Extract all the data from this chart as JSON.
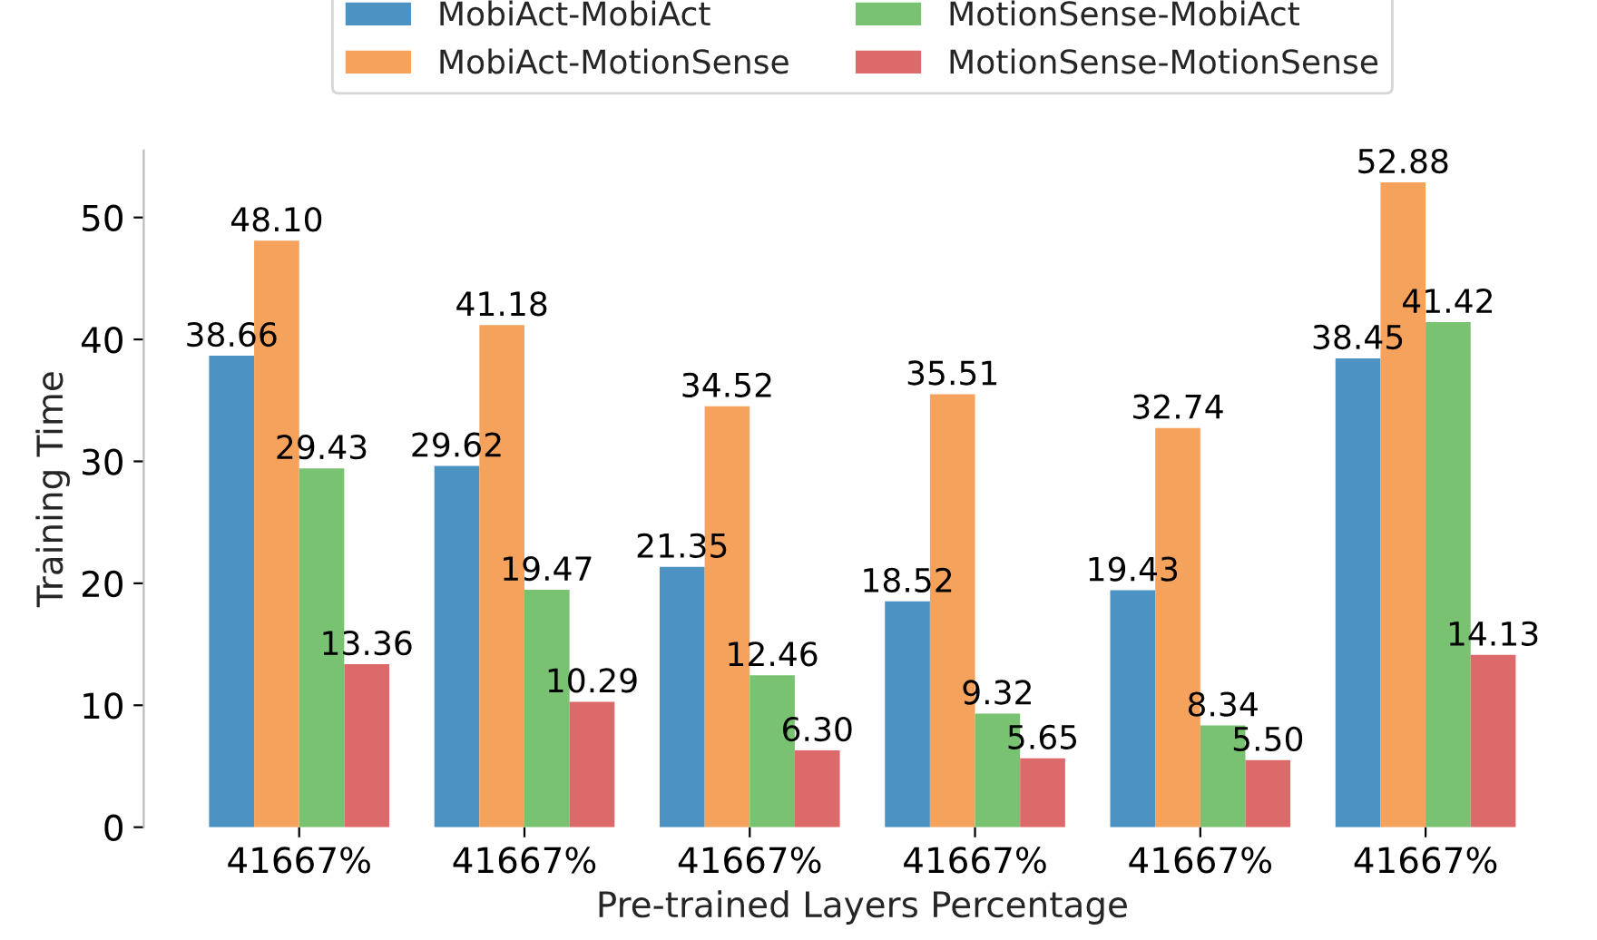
{
  "chart_data": {
    "type": "bar",
    "xlabel": "Pre-trained Layers Percentage",
    "ylabel": "Training Time",
    "categories": [
      "41667%",
      "41667%",
      "41667%",
      "41667%",
      "41667%",
      "41667%"
    ],
    "series": [
      {
        "name": "MobiAct-MobiAct",
        "color": "#4c93c3",
        "values": [
          38.66,
          29.62,
          21.35,
          18.52,
          19.43,
          38.45
        ],
        "value_labels": [
          "38.66",
          "29.62",
          "21.35",
          "18.52",
          "19.43",
          "38.45"
        ]
      },
      {
        "name": "MobiAct-MotionSense",
        "color": "#f5a25d",
        "values": [
          48.1,
          41.18,
          34.52,
          35.51,
          32.74,
          52.88
        ],
        "value_labels": [
          "48.10",
          "41.18",
          "34.52",
          "35.51",
          "32.74",
          "52.88"
        ]
      },
      {
        "name": "MotionSense-MobiAct",
        "color": "#79c272",
        "values": [
          29.43,
          19.47,
          12.46,
          9.32,
          8.34,
          41.42
        ],
        "value_labels": [
          "29.43",
          "19.47",
          "12.46",
          "9.32",
          "8.34",
          "41.42"
        ]
      },
      {
        "name": "MotionSense-MotionSense",
        "color": "#dd6a6a",
        "values": [
          13.36,
          10.29,
          6.3,
          5.65,
          5.5,
          14.13
        ],
        "value_labels": [
          "13.36",
          "10.29",
          "6.30",
          "5.65",
          "5.50",
          "14.13"
        ]
      }
    ],
    "ylim": [
      0,
      55.5
    ],
    "yticks": [
      0,
      10,
      20,
      30,
      40,
      50
    ],
    "grid": false,
    "legend": "top"
  }
}
